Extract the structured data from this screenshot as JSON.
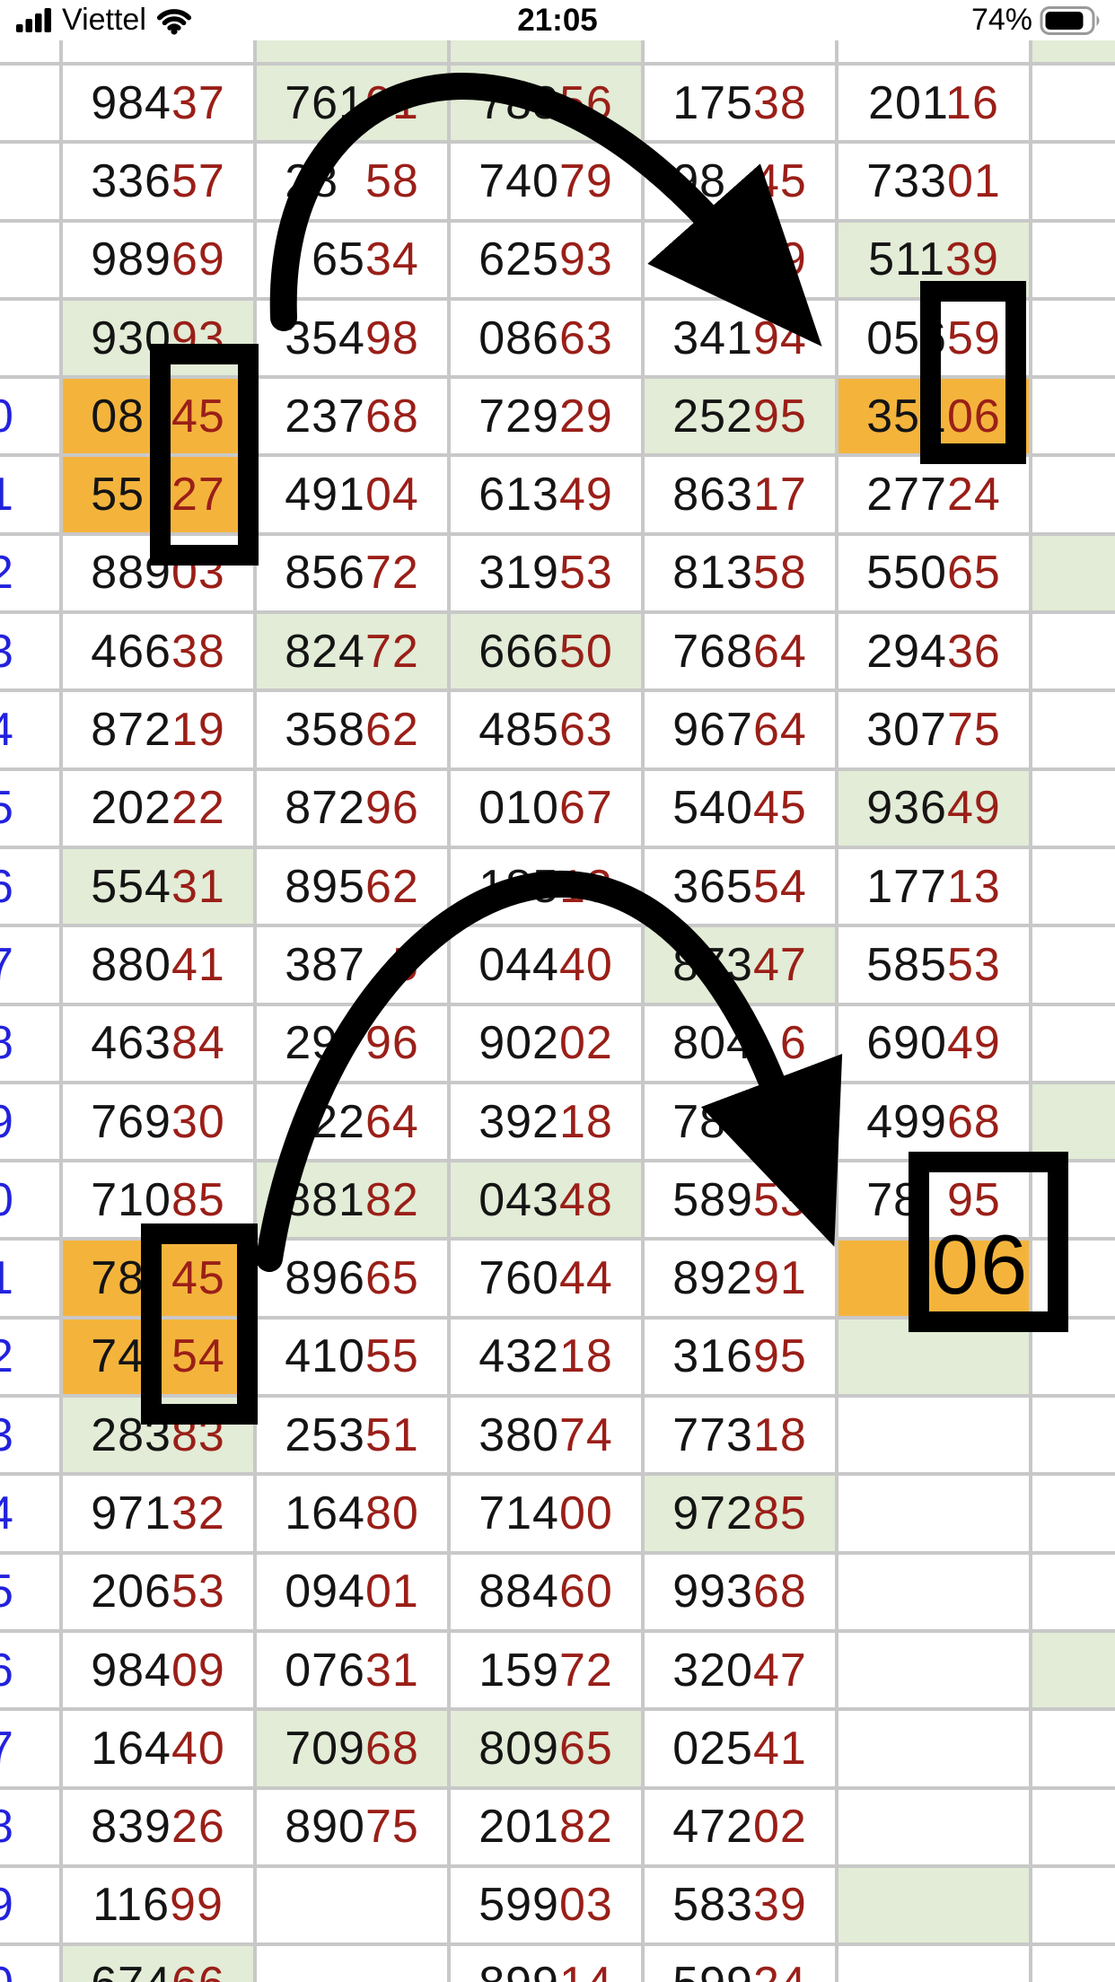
{
  "status_bar": {
    "carrier": "Viettel",
    "time": "21:05",
    "battery_percent": "74%"
  },
  "annotations": {
    "big_label": "06"
  },
  "colors": {
    "digit_black": "#141414",
    "digit_red": "#9a1f18",
    "label_blue": "#2222dd",
    "cell_green": "#e2ecd6",
    "cell_orange": "#f4b43c",
    "grid_line": "#c8c8c8",
    "annotation": "#000000"
  },
  "table": {
    "note_digit_colors": "first 3 digits black, last 2 digits dark red; ? = digit hidden under black annotation",
    "rows": [
      {
        "partial": true,
        "label": "",
        "cells": [
          {
            "v": ""
          },
          {
            "v": "",
            "bg": "g"
          },
          {
            "v": "",
            "bg": "g"
          },
          {
            "v": ""
          },
          {
            "v": ""
          },
          {
            "v": "",
            "bg": "g"
          }
        ]
      },
      {
        "label": "",
        "cells": [
          {
            "v": "98437"
          },
          {
            "v": "76101",
            "bg": "g"
          },
          {
            "v": "78356",
            "bg": "g"
          },
          {
            "v": "17538"
          },
          {
            "v": "20116"
          },
          {
            "v": ""
          }
        ]
      },
      {
        "label": "",
        "cells": [
          {
            "v": "33657"
          },
          {
            "v": "28?58"
          },
          {
            "v": "74079"
          },
          {
            "v": "98?45"
          },
          {
            "v": "73301"
          },
          {
            "v": ""
          }
        ]
      },
      {
        "label": "",
        "cells": [
          {
            "v": "98969"
          },
          {
            "v": "?6534"
          },
          {
            "v": "62593"
          },
          {
            "v": "43769"
          },
          {
            "v": "51139",
            "bg": "g"
          },
          {
            "v": ""
          }
        ]
      },
      {
        "label": "",
        "cells": [
          {
            "v": "93093",
            "bg": "g"
          },
          {
            "v": "35498"
          },
          {
            "v": "08663"
          },
          {
            "v": "34194"
          },
          {
            "v": "05659"
          },
          {
            "v": ""
          }
        ]
      },
      {
        "label": "0",
        "cells": [
          {
            "v": "08?45",
            "bg": "o"
          },
          {
            "v": "23768"
          },
          {
            "v": "72929"
          },
          {
            "v": "25295",
            "bg": "g"
          },
          {
            "v": "35106",
            "bg": "o"
          },
          {
            "v": ""
          }
        ]
      },
      {
        "label": "1",
        "cells": [
          {
            "v": "55?27",
            "bg": "o"
          },
          {
            "v": "49104"
          },
          {
            "v": "61349"
          },
          {
            "v": "86317"
          },
          {
            "v": "27724"
          },
          {
            "v": ""
          }
        ]
      },
      {
        "label": "2",
        "cells": [
          {
            "v": "88903"
          },
          {
            "v": "85672"
          },
          {
            "v": "31953"
          },
          {
            "v": "81358"
          },
          {
            "v": "55065"
          },
          {
            "v": "",
            "bg": "g"
          }
        ]
      },
      {
        "label": "3",
        "cells": [
          {
            "v": "46638"
          },
          {
            "v": "82472",
            "bg": "g"
          },
          {
            "v": "66650",
            "bg": "g"
          },
          {
            "v": "76864"
          },
          {
            "v": "29436"
          },
          {
            "v": ""
          }
        ]
      },
      {
        "label": "4",
        "cells": [
          {
            "v": "87219"
          },
          {
            "v": "35862"
          },
          {
            "v": "48563"
          },
          {
            "v": "96764"
          },
          {
            "v": "30775"
          },
          {
            "v": ""
          }
        ]
      },
      {
        "label": "5",
        "cells": [
          {
            "v": "20222"
          },
          {
            "v": "87296"
          },
          {
            "v": "01067"
          },
          {
            "v": "54045"
          },
          {
            "v": "93649",
            "bg": "g"
          },
          {
            "v": ""
          }
        ]
      },
      {
        "label": "6",
        "cells": [
          {
            "v": "55431",
            "bg": "g"
          },
          {
            "v": "89562"
          },
          {
            "v": "18513"
          },
          {
            "v": "36554"
          },
          {
            "v": "17713"
          },
          {
            "v": ""
          }
        ]
      },
      {
        "label": "7",
        "cells": [
          {
            "v": "88041"
          },
          {
            "v": "387?5"
          },
          {
            "v": "04440"
          },
          {
            "v": "87347",
            "bg": "g"
          },
          {
            "v": "58553"
          },
          {
            "v": ""
          }
        ]
      },
      {
        "label": "8",
        "cells": [
          {
            "v": "46384"
          },
          {
            "v": "29?96"
          },
          {
            "v": "90202"
          },
          {
            "v": "804?6"
          },
          {
            "v": "69049"
          },
          {
            "v": ""
          }
        ]
      },
      {
        "label": "9",
        "cells": [
          {
            "v": "76930"
          },
          {
            "v": "?2264"
          },
          {
            "v": "39218"
          },
          {
            "v": "788??"
          },
          {
            "v": "49968"
          },
          {
            "v": "",
            "bg": "g"
          }
        ]
      },
      {
        "label": "0",
        "cells": [
          {
            "v": "71085"
          },
          {
            "v": "88182",
            "bg": "g"
          },
          {
            "v": "04348",
            "bg": "g"
          },
          {
            "v": "58953"
          },
          {
            "v": "78?95"
          },
          {
            "v": ""
          }
        ]
      },
      {
        "label": "1",
        "cells": [
          {
            "v": "78?45",
            "bg": "o"
          },
          {
            "v": "89665"
          },
          {
            "v": "76044"
          },
          {
            "v": "89291"
          },
          {
            "v": "",
            "bg": "o"
          },
          {
            "v": ""
          }
        ]
      },
      {
        "label": "2",
        "cells": [
          {
            "v": "74?54",
            "bg": "o"
          },
          {
            "v": "41055"
          },
          {
            "v": "43218"
          },
          {
            "v": "31695"
          },
          {
            "v": "",
            "bg": "g"
          },
          {
            "v": ""
          }
        ]
      },
      {
        "label": "3",
        "cells": [
          {
            "v": "28383",
            "bg": "g"
          },
          {
            "v": "25351"
          },
          {
            "v": "38074"
          },
          {
            "v": "77318"
          },
          {
            "v": ""
          },
          {
            "v": ""
          }
        ]
      },
      {
        "label": "4",
        "cells": [
          {
            "v": "97132"
          },
          {
            "v": "16480"
          },
          {
            "v": "71400"
          },
          {
            "v": "97285",
            "bg": "g"
          },
          {
            "v": ""
          },
          {
            "v": ""
          }
        ]
      },
      {
        "label": "5",
        "cells": [
          {
            "v": "20653"
          },
          {
            "v": "09401"
          },
          {
            "v": "88460"
          },
          {
            "v": "99368"
          },
          {
            "v": ""
          },
          {
            "v": ""
          }
        ]
      },
      {
        "label": "6",
        "cells": [
          {
            "v": "98409"
          },
          {
            "v": "07631"
          },
          {
            "v": "15972"
          },
          {
            "v": "32047"
          },
          {
            "v": ""
          },
          {
            "v": "",
            "bg": "g"
          }
        ]
      },
      {
        "label": "7",
        "cells": [
          {
            "v": "16440"
          },
          {
            "v": "70968",
            "bg": "g"
          },
          {
            "v": "80965",
            "bg": "g"
          },
          {
            "v": "02541"
          },
          {
            "v": ""
          },
          {
            "v": ""
          }
        ]
      },
      {
        "label": "8",
        "cells": [
          {
            "v": "83926"
          },
          {
            "v": "89075"
          },
          {
            "v": "20182"
          },
          {
            "v": "47202"
          },
          {
            "v": ""
          },
          {
            "v": ""
          }
        ]
      },
      {
        "label": "9",
        "cells": [
          {
            "v": "11699"
          },
          {
            "v": ""
          },
          {
            "v": "59903"
          },
          {
            "v": "58339"
          },
          {
            "v": "",
            "bg": "g"
          },
          {
            "v": ""
          }
        ]
      },
      {
        "label": "0",
        "cells": [
          {
            "v": "67466",
            "bg": "g"
          },
          {
            "v": ""
          },
          {
            "v": "89914"
          },
          {
            "v": "59924"
          },
          {
            "v": ""
          },
          {
            "v": ""
          }
        ]
      }
    ]
  }
}
